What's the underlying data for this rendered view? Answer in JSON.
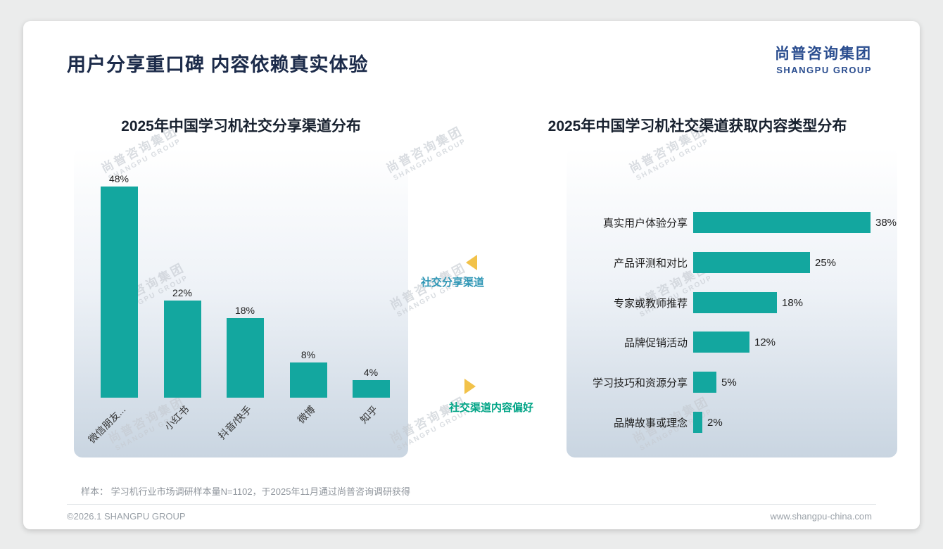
{
  "page": {
    "title": "用户分享重口碑 内容依赖真实体验",
    "logo": {
      "cn": "尚普咨询集团",
      "en": "SHANGPU GROUP"
    },
    "watermark_text": {
      "cn": "尚普咨询集团",
      "en": "SHANGPU GROUP"
    },
    "annotations": {
      "left_chart_label": "社交分享渠道",
      "right_chart_label": "社交渠道内容偏好"
    },
    "footnote": "样本： 学习机行业市场调研样本量N=1102，于2025年11月通过尚普咨询调研获得",
    "footer": {
      "left": "©2026.1 SHANGPU GROUP",
      "right": "www.shangpu-china.com"
    }
  },
  "colors": {
    "bar_teal": "#13a79f",
    "title_navy": "#1c2b4a",
    "logo_navy": "#2a4d8f",
    "arrow_yellow": "#f2c24a",
    "annotation_blue": "#2e96b5",
    "annotation_green": "#00a486"
  },
  "chart_data": [
    {
      "type": "bar",
      "orientation": "vertical",
      "title": "2025年中国学习机社交分享渠道分布",
      "categories": [
        "微信朋友...",
        "小红书",
        "抖音/快手",
        "微博",
        "知乎"
      ],
      "values": [
        48,
        22,
        18,
        8,
        4
      ],
      "unit": "%",
      "ylim": [
        0,
        50
      ],
      "grid": false,
      "legend": "none",
      "value_labels": "above bars"
    },
    {
      "type": "bar",
      "orientation": "horizontal",
      "title": "2025年中国学习机社交渠道获取内容类型分布",
      "categories": [
        "真实用户体验分享",
        "产品评测和对比",
        "专家或教师推荐",
        "品牌促销活动",
        "学习技巧和资源分享",
        "品牌故事或理念"
      ],
      "values": [
        38,
        25,
        18,
        12,
        5,
        2
      ],
      "unit": "%",
      "xlim": [
        0,
        42
      ],
      "grid": false,
      "legend": "none",
      "value_labels": "right of bars"
    }
  ]
}
